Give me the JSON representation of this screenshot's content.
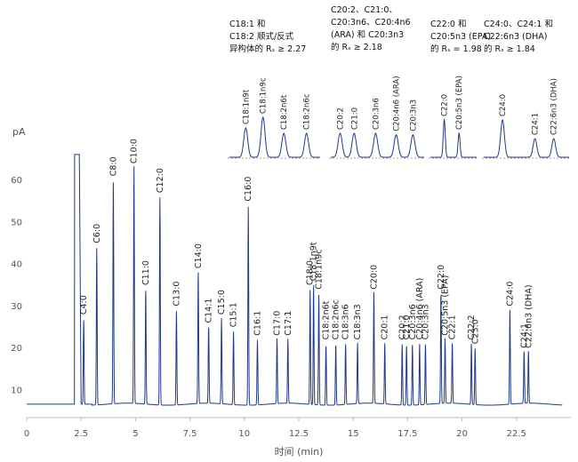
{
  "chart_data": {
    "type": "line",
    "xlabel": "时间 (min)",
    "ylabel": "pA",
    "xlim": [
      0,
      25
    ],
    "ylim": [
      5,
      70
    ],
    "x_ticks": [
      "0",
      "2.5",
      "5",
      "7.5",
      "10",
      "12.5",
      "15",
      "17.5",
      "20",
      "22.5"
    ],
    "x_tick_values": [
      0,
      2.5,
      5,
      7.5,
      10,
      12.5,
      15,
      17.5,
      20,
      22.5
    ],
    "y_ticks": [
      "10",
      "20",
      "30",
      "40",
      "50",
      "60"
    ],
    "y_tick_values": [
      10,
      20,
      30,
      40,
      50,
      60
    ],
    "baseline": 6.5,
    "solvent_peak": {
      "x": 2.2,
      "y": 66
    },
    "line_color": "#1f3a8a",
    "peaks": [
      {
        "label": "C4:0",
        "x": 2.62,
        "y": 27
      },
      {
        "label": "C6:0",
        "x": 3.22,
        "y": 44
      },
      {
        "label": "C8:0",
        "x": 3.98,
        "y": 60
      },
      {
        "label": "C10:0",
        "x": 4.93,
        "y": 63
      },
      {
        "label": "C11:0",
        "x": 5.47,
        "y": 34
      },
      {
        "label": "C12:0",
        "x": 6.12,
        "y": 56
      },
      {
        "label": "C13:0",
        "x": 6.88,
        "y": 29
      },
      {
        "label": "C14:0",
        "x": 7.88,
        "y": 38
      },
      {
        "label": "C14:1",
        "x": 8.36,
        "y": 25
      },
      {
        "label": "C15:0",
        "x": 8.95,
        "y": 27
      },
      {
        "label": "C15:1",
        "x": 9.5,
        "y": 24
      },
      {
        "label": "C16:0",
        "x": 10.18,
        "y": 54
      },
      {
        "label": "C16:1",
        "x": 10.6,
        "y": 22
      },
      {
        "label": "C17:0",
        "x": 11.5,
        "y": 22
      },
      {
        "label": "C17:1",
        "x": 12.0,
        "y": 22
      },
      {
        "label": "C18:0",
        "x": 13.02,
        "y": 34
      },
      {
        "label": "C18:1n9t",
        "x": 13.18,
        "y": 35
      },
      {
        "label": "C18:1n9c",
        "x": 13.42,
        "y": 33
      },
      {
        "label": "C18:2n6t",
        "x": 13.75,
        "y": 21
      },
      {
        "label": "C18:2n6c",
        "x": 14.2,
        "y": 21
      },
      {
        "label": "C18:3n6",
        "x": 14.65,
        "y": 21
      },
      {
        "label": "C18:3n3",
        "x": 15.2,
        "y": 21
      },
      {
        "label": "C20:0",
        "x": 15.95,
        "y": 33
      },
      {
        "label": "C20:1",
        "x": 16.45,
        "y": 21
      },
      {
        "label": "C20:2",
        "x": 17.25,
        "y": 21
      },
      {
        "label": "C21:0",
        "x": 17.45,
        "y": 21
      },
      {
        "label": "C20:3n6",
        "x": 17.72,
        "y": 21
      },
      {
        "label": "C20:4n6 (ARA)",
        "x": 18.05,
        "y": 21
      },
      {
        "label": "C20:3n3",
        "x": 18.32,
        "y": 21
      },
      {
        "label": "C22:0",
        "x": 19.03,
        "y": 33
      },
      {
        "label": "C20:5n3 (EPA)",
        "x": 19.22,
        "y": 22
      },
      {
        "label": "C22:1",
        "x": 19.55,
        "y": 21
      },
      {
        "label": "C22:2",
        "x": 20.43,
        "y": 21
      },
      {
        "label": "C23:0",
        "x": 20.6,
        "y": 20
      },
      {
        "label": "C24:0",
        "x": 22.2,
        "y": 29
      },
      {
        "label": "C24:1",
        "x": 22.85,
        "y": 19
      },
      {
        "label": "C22:6n3 (DHA)",
        "x": 23.05,
        "y": 19
      }
    ],
    "insets": [
      {
        "annotation": [
          "C18:1 和",
          "C18:2 顺式/反式",
          "异构体的 Rₛ ≥ 2.27"
        ],
        "peaks": [
          {
            "label": "C18:1n9t",
            "x": 0.18,
            "h": 0.55
          },
          {
            "label": "C18:1n9c",
            "x": 0.37,
            "h": 0.75
          },
          {
            "label": "C18:2n6t",
            "x": 0.6,
            "h": 0.45
          },
          {
            "label": "C18:2n6c",
            "x": 0.85,
            "h": 0.45
          }
        ]
      },
      {
        "annotation": [
          "C20:2、C21:0、",
          "C20:3n6、C20:4n6",
          "(ARA) 和 C20:3n3",
          "的 Rₛ ≥ 2.18"
        ],
        "peaks": [
          {
            "label": "C20:2",
            "x": 0.1,
            "h": 0.45
          },
          {
            "label": "C21:0",
            "x": 0.25,
            "h": 0.45
          },
          {
            "label": "C20:3n6",
            "x": 0.48,
            "h": 0.45
          },
          {
            "label": "C20:4n6 (ARA)",
            "x": 0.7,
            "h": 0.42
          },
          {
            "label": "C20:3n3",
            "x": 0.88,
            "h": 0.42
          }
        ]
      },
      {
        "annotation": [
          "C22:0 和",
          "C20:5n3 (EPA)",
          "的 Rₛ = 1.98"
        ],
        "peaks": [
          {
            "label": "C22:0",
            "x": 0.3,
            "h": 0.7
          },
          {
            "label": "C20:5n3 (EPA)",
            "x": 0.62,
            "h": 0.45
          }
        ]
      },
      {
        "annotation": [
          "C24:0、C24:1 和",
          "C22:6n3 (DHA)",
          "的 Rₛ ≥ 1.84"
        ],
        "peaks": [
          {
            "label": "C24:0",
            "x": 0.22,
            "h": 0.7
          },
          {
            "label": "C24:1",
            "x": 0.6,
            "h": 0.35
          },
          {
            "label": "C22:6n3 (DHA)",
            "x": 0.82,
            "h": 0.35
          }
        ]
      }
    ]
  }
}
